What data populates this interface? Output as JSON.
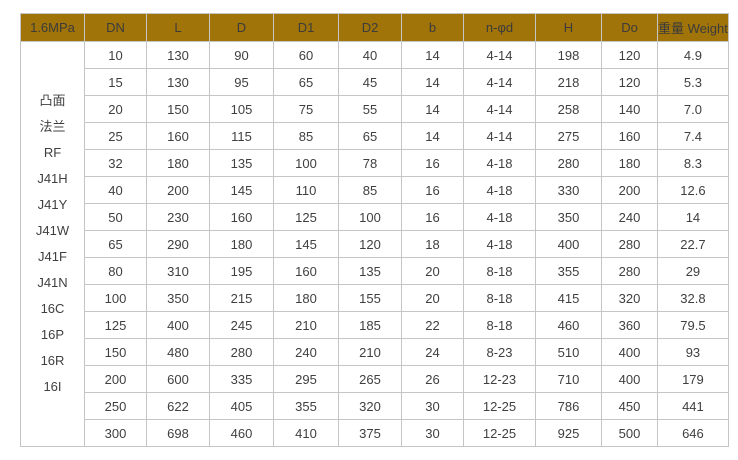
{
  "colors": {
    "header_bg": "#a1740a",
    "header_text": "#3b3b3b",
    "body_text": "#3f3f3f",
    "grid_border": "#c5c5c5",
    "page_bg": "#ffffff"
  },
  "table": {
    "pressure_label": "1.6MPa",
    "headers": [
      "DN",
      "L",
      "D",
      "D1",
      "D2",
      "b",
      "n-φd",
      "H",
      "Do",
      "重量 Weight"
    ],
    "left_labels": [
      "凸面",
      "法兰",
      "RF",
      "J41H",
      "J41Y",
      "J41W",
      "J41F",
      "J41N",
      "16C",
      "16P",
      "16R",
      "16I"
    ],
    "rows": [
      [
        "10",
        "130",
        "90",
        "60",
        "40",
        "14",
        "4-14",
        "198",
        "120",
        "4.9"
      ],
      [
        "15",
        "130",
        "95",
        "65",
        "45",
        "14",
        "4-14",
        "218",
        "120",
        "5.3"
      ],
      [
        "20",
        "150",
        "105",
        "75",
        "55",
        "14",
        "4-14",
        "258",
        "140",
        "7.0"
      ],
      [
        "25",
        "160",
        "115",
        "85",
        "65",
        "14",
        "4-14",
        "275",
        "160",
        "7.4"
      ],
      [
        "32",
        "180",
        "135",
        "100",
        "78",
        "16",
        "4-18",
        "280",
        "180",
        "8.3"
      ],
      [
        "40",
        "200",
        "145",
        "110",
        "85",
        "16",
        "4-18",
        "330",
        "200",
        "12.6"
      ],
      [
        "50",
        "230",
        "160",
        "125",
        "100",
        "16",
        "4-18",
        "350",
        "240",
        "14"
      ],
      [
        "65",
        "290",
        "180",
        "145",
        "120",
        "18",
        "4-18",
        "400",
        "280",
        "22.7"
      ],
      [
        "80",
        "310",
        "195",
        "160",
        "135",
        "20",
        "8-18",
        "355",
        "280",
        "29"
      ],
      [
        "100",
        "350",
        "215",
        "180",
        "155",
        "20",
        "8-18",
        "415",
        "320",
        "32.8"
      ],
      [
        "125",
        "400",
        "245",
        "210",
        "185",
        "22",
        "8-18",
        "460",
        "360",
        "79.5"
      ],
      [
        "150",
        "480",
        "280",
        "240",
        "210",
        "24",
        "8-23",
        "510",
        "400",
        "93"
      ],
      [
        "200",
        "600",
        "335",
        "295",
        "265",
        "26",
        "12-23",
        "710",
        "400",
        "179"
      ],
      [
        "250",
        "622",
        "405",
        "355",
        "320",
        "30",
        "12-25",
        "786",
        "450",
        "441"
      ],
      [
        "300",
        "698",
        "460",
        "410",
        "375",
        "30",
        "12-25",
        "925",
        "500",
        "646"
      ]
    ]
  }
}
